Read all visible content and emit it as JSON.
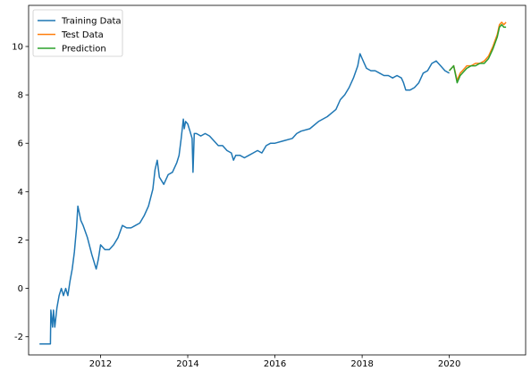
{
  "chart_data": {
    "type": "line",
    "title": "",
    "xlabel": "",
    "ylabel": "",
    "xlim": [
      2010.35,
      2021.75
    ],
    "ylim": [
      -2.75,
      11.7
    ],
    "x_ticks": [
      2012,
      2014,
      2016,
      2018,
      2020
    ],
    "x_tick_labels": [
      "2012",
      "2014",
      "2016",
      "2018",
      "2020"
    ],
    "y_ticks": [
      -2,
      0,
      2,
      4,
      6,
      8,
      10
    ],
    "y_tick_labels": [
      "-2",
      "0",
      "2",
      "4",
      "6",
      "8",
      "10"
    ],
    "grid": false,
    "legend": {
      "position": "top-left",
      "entries": [
        "Training Data",
        "Test Data",
        "Prediction"
      ]
    },
    "series": [
      {
        "name": "Training Data",
        "color": "#1f77b4",
        "x": [
          2010.6,
          2010.85,
          2010.86,
          2010.9,
          2010.92,
          2010.95,
          2011.0,
          2011.05,
          2011.1,
          2011.15,
          2011.2,
          2011.25,
          2011.3,
          2011.35,
          2011.4,
          2011.45,
          2011.48,
          2011.55,
          2011.6,
          2011.7,
          2011.8,
          2011.9,
          2011.95,
          2012.0,
          2012.1,
          2012.2,
          2012.3,
          2012.4,
          2012.5,
          2012.6,
          2012.7,
          2012.8,
          2012.9,
          2013.0,
          2013.1,
          2013.2,
          2013.25,
          2013.3,
          2013.35,
          2013.45,
          2013.55,
          2013.65,
          2013.75,
          2013.8,
          2013.85,
          2013.9,
          2013.92,
          2013.95,
          2014.0,
          2014.05,
          2014.1,
          2014.12,
          2014.15,
          2014.2,
          2014.3,
          2014.4,
          2014.5,
          2014.6,
          2014.7,
          2014.8,
          2014.9,
          2015.0,
          2015.05,
          2015.1,
          2015.2,
          2015.3,
          2015.4,
          2015.5,
          2015.6,
          2015.7,
          2015.8,
          2015.9,
          2016.0,
          2016.2,
          2016.4,
          2016.5,
          2016.6,
          2016.8,
          2017.0,
          2017.2,
          2017.4,
          2017.5,
          2017.6,
          2017.7,
          2017.8,
          2017.9,
          2017.95,
          2018.0,
          2018.05,
          2018.1,
          2018.2,
          2018.3,
          2018.4,
          2018.5,
          2018.6,
          2018.7,
          2018.8,
          2018.9,
          2018.95,
          2019.0,
          2019.1,
          2019.2,
          2019.3,
          2019.4,
          2019.5,
          2019.6,
          2019.7,
          2019.8,
          2019.9,
          2020.0
        ],
        "values": [
          -2.3,
          -2.3,
          -0.9,
          -1.6,
          -0.9,
          -1.6,
          -0.8,
          -0.3,
          0.0,
          -0.3,
          0.0,
          -0.3,
          0.3,
          0.8,
          1.5,
          2.5,
          3.4,
          2.8,
          2.6,
          2.1,
          1.4,
          0.8,
          1.2,
          1.8,
          1.6,
          1.6,
          1.8,
          2.1,
          2.6,
          2.5,
          2.5,
          2.6,
          2.7,
          3.0,
          3.4,
          4.1,
          4.9,
          5.3,
          4.6,
          4.3,
          4.7,
          4.8,
          5.2,
          5.5,
          6.2,
          7.0,
          6.6,
          6.9,
          6.8,
          6.5,
          6.2,
          4.8,
          6.4,
          6.4,
          6.3,
          6.4,
          6.3,
          6.1,
          5.9,
          5.9,
          5.7,
          5.6,
          5.3,
          5.5,
          5.5,
          5.4,
          5.5,
          5.6,
          5.7,
          5.6,
          5.9,
          6.0,
          6.0,
          6.1,
          6.2,
          6.4,
          6.5,
          6.6,
          6.9,
          7.1,
          7.4,
          7.8,
          8.0,
          8.3,
          8.7,
          9.2,
          9.7,
          9.5,
          9.3,
          9.1,
          9.0,
          9.0,
          8.9,
          8.8,
          8.8,
          8.7,
          8.8,
          8.7,
          8.5,
          8.2,
          8.2,
          8.3,
          8.5,
          8.9,
          9.0,
          9.3,
          9.4,
          9.2,
          9.0,
          8.9
        ]
      },
      {
        "name": "Test Data",
        "color": "#ff7f0e",
        "x": [
          2020.0,
          2020.1,
          2020.18,
          2020.25,
          2020.3,
          2020.4,
          2020.5,
          2020.6,
          2020.7,
          2020.8,
          2020.9,
          2021.0,
          2021.1,
          2021.15,
          2021.2,
          2021.25,
          2021.3
        ],
        "values": [
          9.0,
          9.2,
          8.6,
          8.9,
          9.0,
          9.2,
          9.2,
          9.3,
          9.3,
          9.4,
          9.6,
          10.0,
          10.5,
          10.9,
          11.0,
          10.9,
          11.0
        ]
      },
      {
        "name": "Prediction",
        "color": "#2ca02c",
        "x": [
          2020.0,
          2020.1,
          2020.18,
          2020.25,
          2020.3,
          2020.4,
          2020.5,
          2020.6,
          2020.7,
          2020.8,
          2020.9,
          2021.0,
          2021.1,
          2021.15,
          2021.2,
          2021.25,
          2021.3
        ],
        "values": [
          9.0,
          9.2,
          8.5,
          8.8,
          8.9,
          9.1,
          9.2,
          9.2,
          9.3,
          9.3,
          9.5,
          9.9,
          10.4,
          10.8,
          10.9,
          10.8,
          10.8
        ]
      }
    ]
  }
}
